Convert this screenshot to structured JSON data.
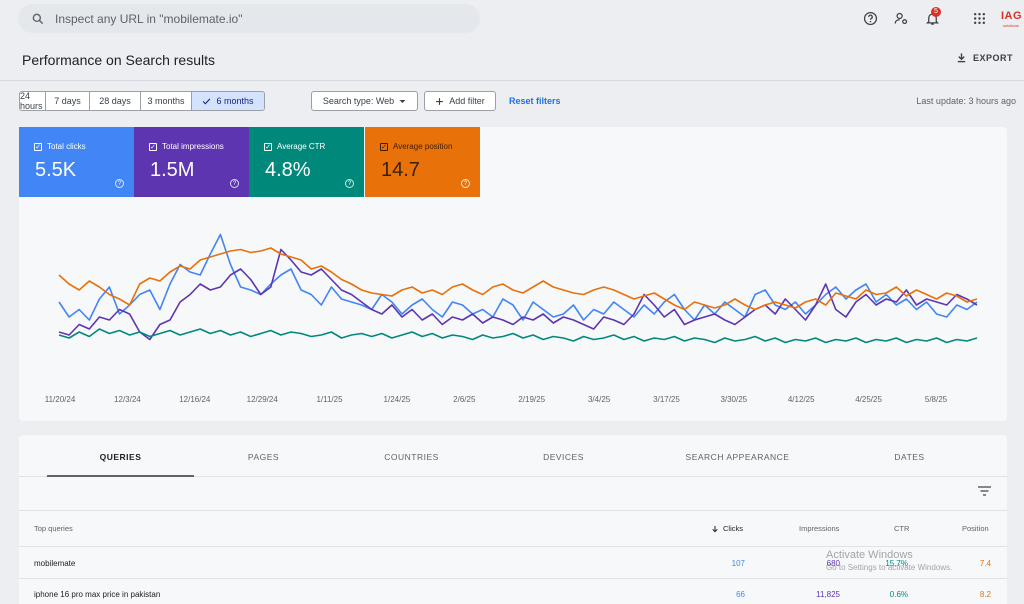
{
  "search": {
    "placeholder": "Inspect any URL in \"mobilemate.io\""
  },
  "header": {
    "notifications_count": "5",
    "brand": "IAG",
    "brand_sub": "solutions"
  },
  "page": {
    "title": "Performance on Search results",
    "export_label": "EXPORT"
  },
  "filters": {
    "date_ranges": [
      "24 hours",
      "7 days",
      "28 days",
      "3 months",
      "6 months"
    ],
    "selected_range": "6 months",
    "search_type": "Search type: Web",
    "add_filter": "Add filter",
    "reset": "Reset filters",
    "last_update": "Last update: 3 hours ago"
  },
  "metrics": [
    {
      "label": "Total clicks",
      "value": "5.5K",
      "color": "#4285f4",
      "checked": true
    },
    {
      "label": "Total impressions",
      "value": "1.5M",
      "color": "#5e35b1",
      "checked": true
    },
    {
      "label": "Average CTR",
      "value": "4.8%",
      "color": "#00897b",
      "checked": true
    },
    {
      "label": "Average position",
      "value": "14.7",
      "color": "#e8710a",
      "checked": true
    }
  ],
  "chart_data": {
    "type": "line",
    "x_ticks": [
      "11/20/24",
      "12/3/24",
      "12/16/24",
      "12/29/24",
      "1/11/25",
      "1/24/25",
      "2/6/25",
      "2/19/25",
      "3/4/25",
      "3/17/25",
      "3/30/25",
      "4/12/25",
      "4/25/25",
      "5/8/25"
    ],
    "series": [
      {
        "name": "Total clicks",
        "color": "#4285f4",
        "values": [
          50,
          40,
          45,
          38,
          52,
          60,
          42,
          48,
          55,
          58,
          45,
          62,
          75,
          70,
          68,
          82,
          95,
          75,
          60,
          58,
          55,
          62,
          68,
          72,
          58,
          55,
          48,
          60,
          52,
          50,
          48,
          45,
          55,
          50,
          42,
          48,
          52,
          45,
          40,
          50,
          48,
          42,
          45,
          40,
          52,
          48,
          38,
          50,
          45,
          40,
          42,
          48,
          38,
          45,
          42,
          50,
          45,
          40,
          48,
          42,
          50,
          55,
          45,
          38,
          48,
          42,
          50,
          45,
          40,
          55,
          58,
          48,
          45,
          50,
          42,
          48,
          55,
          60,
          52,
          58,
          62,
          50,
          55,
          48,
          52,
          45,
          50,
          42,
          40,
          48,
          45,
          50
        ]
      },
      {
        "name": "Total impressions",
        "color": "#5e35b1",
        "values": [
          30,
          28,
          35,
          32,
          40,
          38,
          45,
          42,
          30,
          25,
          35,
          38,
          50,
          55,
          62,
          58,
          60,
          68,
          72,
          65,
          55,
          60,
          85,
          78,
          70,
          68,
          72,
          65,
          58,
          55,
          50,
          45,
          42,
          48,
          40,
          45,
          38,
          42,
          35,
          40,
          38,
          42,
          36,
          40,
          38,
          35,
          40,
          38,
          42,
          36,
          40,
          38,
          35,
          32,
          40,
          38,
          35,
          42,
          55,
          48,
          40,
          45,
          35,
          38,
          40,
          42,
          38,
          35,
          40,
          45,
          48,
          42,
          52,
          45,
          38,
          48,
          62,
          45,
          40,
          50,
          55,
          48,
          52,
          50,
          58,
          48,
          52,
          50,
          48,
          55,
          52,
          48
        ]
      },
      {
        "name": "Average CTR",
        "color": "#00897b",
        "values": [
          28,
          26,
          30,
          27,
          32,
          29,
          31,
          28,
          30,
          27,
          29,
          31,
          28,
          30,
          32,
          29,
          31,
          28,
          30,
          27,
          29,
          31,
          28,
          30,
          29,
          27,
          28,
          30,
          26,
          28,
          29,
          27,
          29,
          26,
          28,
          30,
          27,
          29,
          26,
          28,
          27,
          25,
          28,
          26,
          27,
          29,
          26,
          28,
          25,
          27,
          26,
          24,
          27,
          25,
          26,
          28,
          25,
          27,
          24,
          26,
          25,
          27,
          24,
          26,
          25,
          23,
          26,
          24,
          25,
          27,
          24,
          26,
          23,
          25,
          24,
          26,
          23,
          25,
          24,
          26,
          23,
          25,
          24,
          26,
          23,
          25,
          24,
          26,
          23,
          25,
          24,
          26
        ]
      },
      {
        "name": "Average position",
        "color": "#e8710a",
        "values": [
          68,
          62,
          58,
          64,
          60,
          55,
          52,
          48,
          62,
          66,
          64,
          70,
          74,
          72,
          78,
          80,
          82,
          84,
          85,
          83,
          84,
          86,
          82,
          80,
          78,
          72,
          74,
          70,
          65,
          62,
          58,
          56,
          55,
          54,
          58,
          60,
          56,
          58,
          55,
          60,
          62,
          58,
          55,
          60,
          62,
          58,
          56,
          60,
          64,
          60,
          58,
          56,
          55,
          58,
          60,
          58,
          55,
          52,
          54,
          56,
          52,
          48,
          45,
          50,
          48,
          46,
          48,
          52,
          48,
          45,
          48,
          50,
          48,
          46,
          50,
          52,
          48,
          56,
          54,
          52,
          58,
          55,
          56,
          60,
          54,
          58,
          55,
          52,
          56,
          54,
          50,
          52
        ]
      }
    ],
    "grid": false,
    "legend": "none"
  },
  "table": {
    "tabs": [
      "QUERIES",
      "PAGES",
      "COUNTRIES",
      "DEVICES",
      "SEARCH APPEARANCE",
      "DATES"
    ],
    "active_tab": "QUERIES",
    "columns": [
      "Top queries",
      "Clicks",
      "Impressions",
      "CTR",
      "Position"
    ],
    "rows": [
      {
        "query": "mobilemate",
        "clicks": "107",
        "impressions": "680",
        "ctr": "15.7%",
        "position": "7.4"
      },
      {
        "query": "iphone 16 pro max price in pakistan",
        "clicks": "66",
        "impressions": "11,825",
        "ctr": "0.6%",
        "position": "8.2"
      }
    ]
  },
  "watermark": {
    "line1": "Activate Windows",
    "line2": "Go to Settings to activate Windows."
  }
}
